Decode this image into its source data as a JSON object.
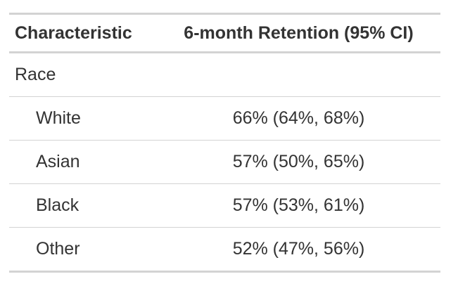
{
  "header": {
    "characteristic": "Characteristic",
    "retention": "6-month Retention (95% CI)"
  },
  "rows": [
    {
      "label": "Race",
      "value": ""
    },
    {
      "label": "White",
      "value": "66% (64%, 68%)"
    },
    {
      "label": "Asian",
      "value": "57% (50%, 65%)"
    },
    {
      "label": "Black",
      "value": "57% (53%, 61%)"
    },
    {
      "label": "Other",
      "value": "52% (47%, 56%)"
    }
  ],
  "colors": {
    "text": "#333333",
    "rule": "#d3d3d3"
  }
}
